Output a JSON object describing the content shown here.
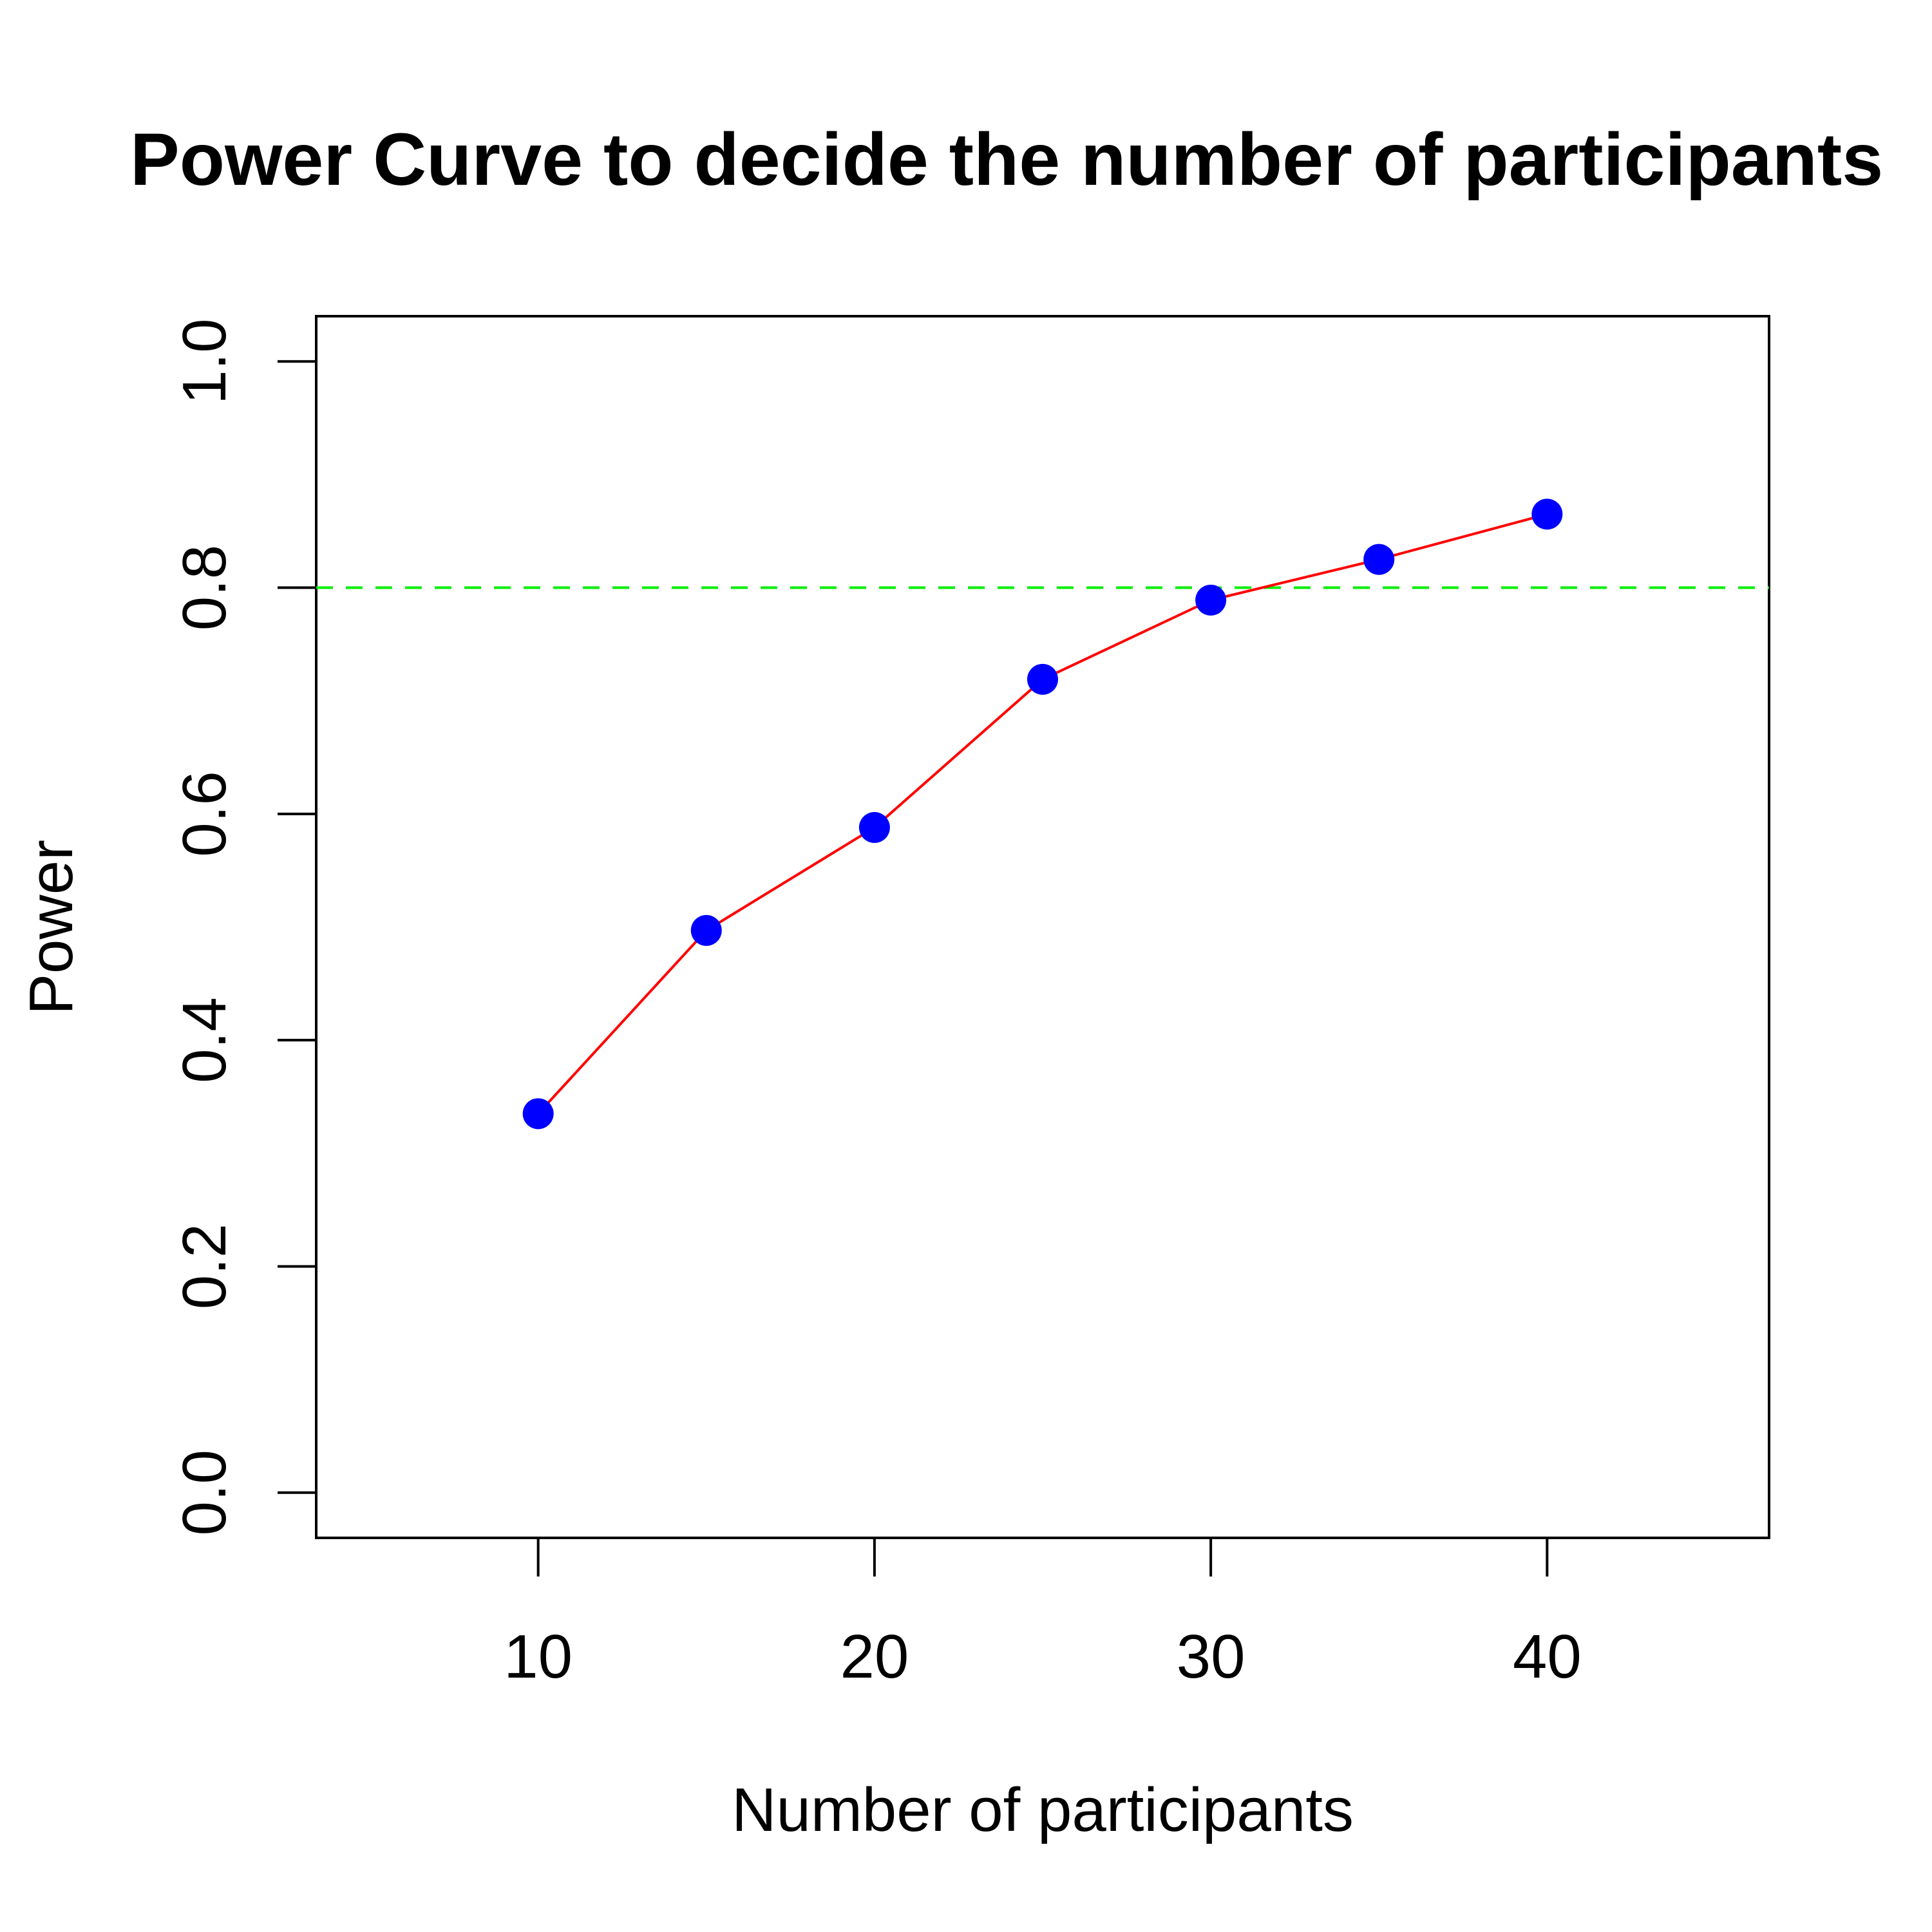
{
  "chart_data": {
    "type": "line",
    "title": "Power Curve to decide the number of participants",
    "xlabel": "Number of participants",
    "ylabel": "Power",
    "x": [
      10,
      15,
      20,
      25,
      30,
      35,
      40
    ],
    "series": [
      {
        "values": [
          0.335,
          0.497,
          0.588,
          0.719,
          0.789,
          0.825,
          0.865
        ],
        "line_color": "#ff0000",
        "point_color": "#0000ff"
      }
    ],
    "reference_line": {
      "y": 0.8,
      "color": "#00ee00",
      "style": "dashed"
    },
    "xlim": [
      3.4,
      46.6
    ],
    "ylim": [
      -0.04,
      1.04
    ],
    "x_ticks": [
      "10",
      "20",
      "30",
      "40"
    ],
    "y_ticks": [
      "0.0",
      "0.2",
      "0.4",
      "0.6",
      "0.8",
      "1.0"
    ],
    "grid": false,
    "legend": "none"
  }
}
